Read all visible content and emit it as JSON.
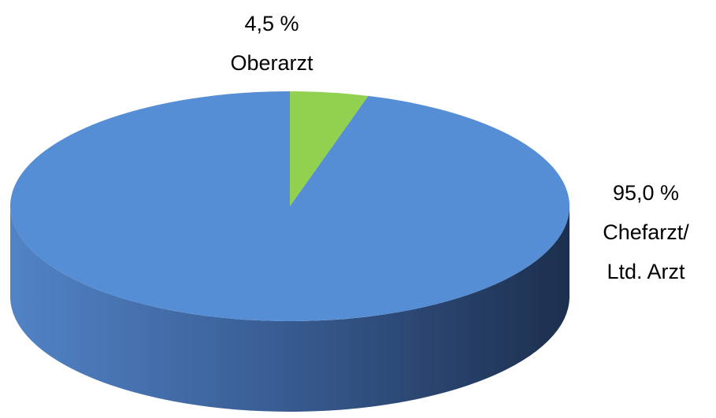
{
  "chart_data": {
    "type": "pie",
    "categories": [
      "Oberarzt",
      "Chefarzt/ Ltd. Arzt"
    ],
    "values": [
      4.5,
      95.0
    ],
    "value_labels": [
      "4,5 %",
      "95,0 %"
    ],
    "colors": [
      "#92d050",
      "#558ed5"
    ]
  }
}
